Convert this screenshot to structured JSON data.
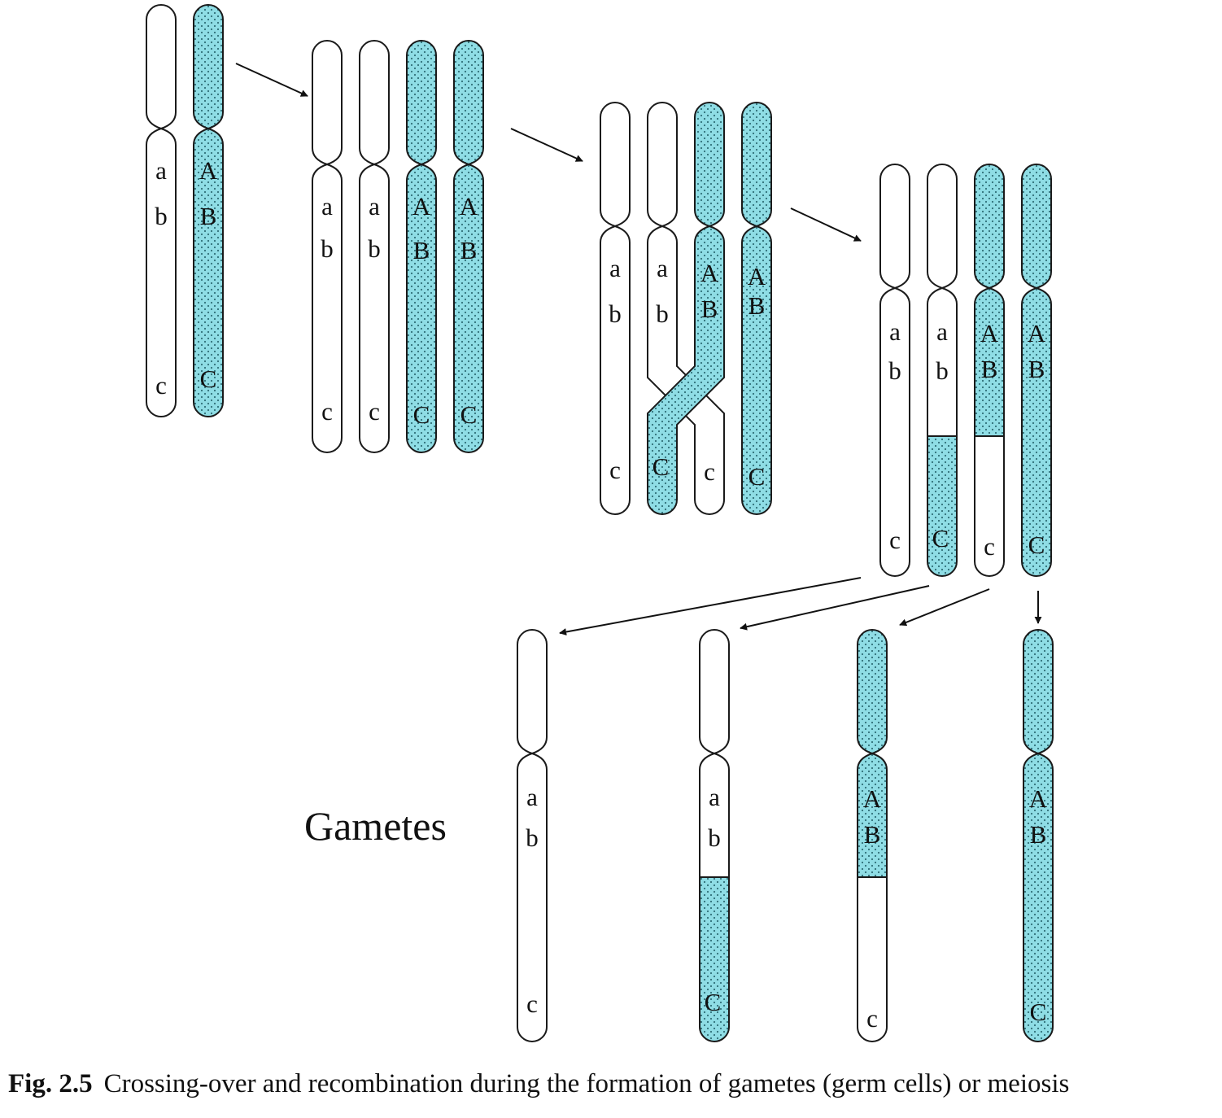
{
  "colors": {
    "shaded": "#8fdde5",
    "dot": "#2f6f78",
    "outline": "#1a1a1a",
    "plain": "#ffffff"
  },
  "labels": {
    "a": "a",
    "b": "b",
    "c": "c",
    "A": "A",
    "B": "B",
    "C": "C"
  },
  "gametes_label": "Gametes",
  "caption": {
    "number": "Fig. 2.5",
    "text": "Crossing-over and recombination during the formation of gametes (germ cells) or meiosis"
  }
}
